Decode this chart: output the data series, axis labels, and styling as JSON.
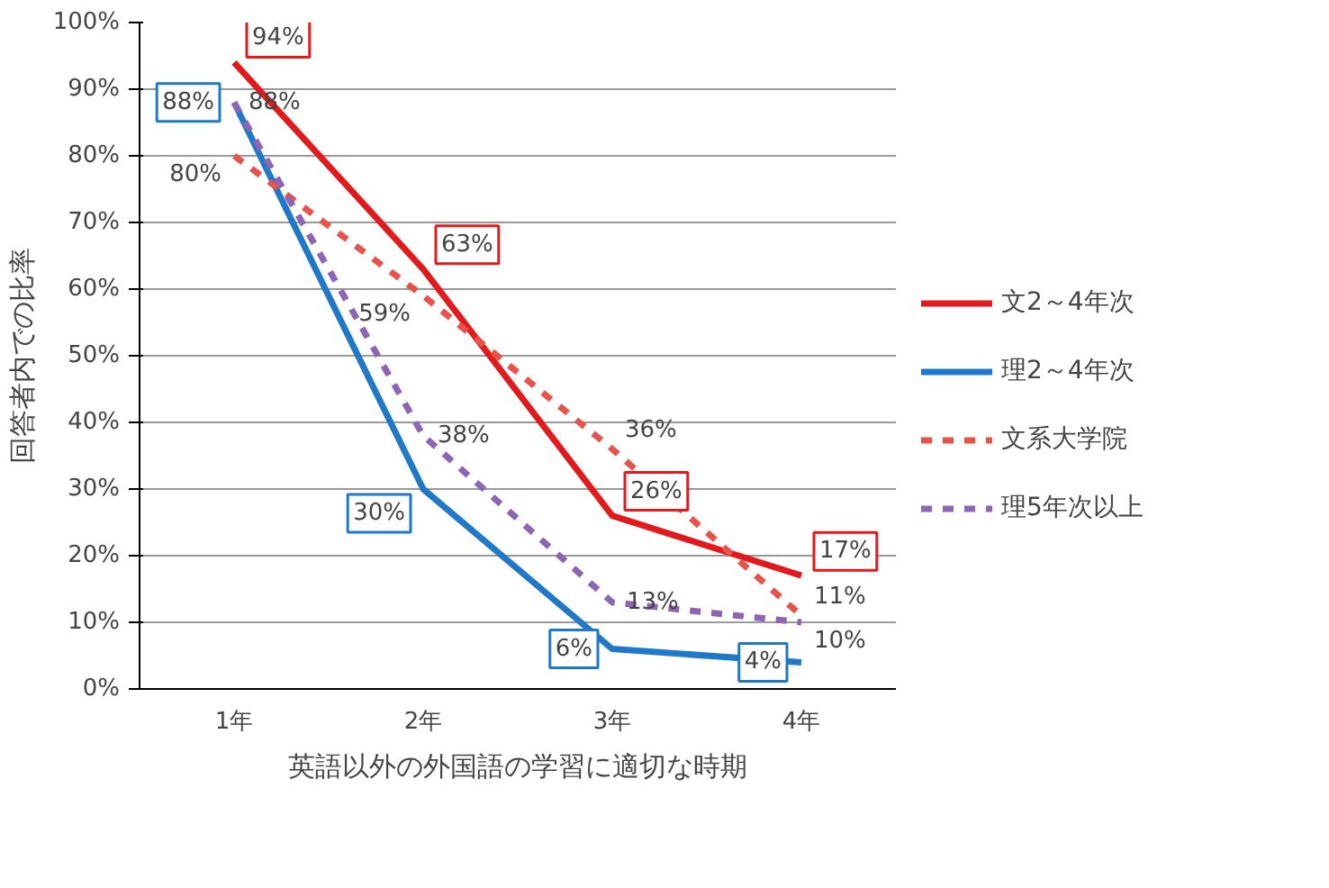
{
  "chart_data": {
    "type": "line",
    "xlabel": "英語以外の外国語の学習に適切な時期",
    "ylabel": "回答者内での比率",
    "categories": [
      "1年",
      "2年",
      "3年",
      "4年"
    ],
    "series": [
      {
        "name": "文2～4年次",
        "color": "#e31a1c",
        "line_style": "solid",
        "values": [
          94,
          63,
          26,
          17
        ],
        "value_labels": [
          "94%",
          "63%",
          "26%",
          "17%"
        ]
      },
      {
        "name": "理2～4年次",
        "color": "#1f78c8",
        "line_style": "solid",
        "values": [
          88,
          30,
          6,
          4
        ],
        "value_labels": [
          "88%",
          "30%",
          "6%",
          "4%"
        ]
      },
      {
        "name": "文系大学院",
        "color": "#e8524a",
        "line_style": "dashed",
        "values": [
          80,
          59,
          36,
          11
        ],
        "value_labels": [
          "80%",
          "59%",
          "36%",
          "11%"
        ]
      },
      {
        "name": "理5年次以上",
        "color": "#8e64b4",
        "line_style": "dashed",
        "values": [
          88,
          38,
          13,
          10
        ],
        "value_labels": [
          "88%",
          "38%",
          "13%",
          "10%"
        ]
      }
    ],
    "ylim": [
      0,
      100
    ],
    "yticks": [
      {
        "value": 0,
        "label": "0%"
      },
      {
        "value": 10,
        "label": "10%"
      },
      {
        "value": 20,
        "label": "20%"
      },
      {
        "value": 30,
        "label": "30%"
      },
      {
        "value": 40,
        "label": "40%"
      },
      {
        "value": 50,
        "label": "50%"
      },
      {
        "value": 60,
        "label": "60%"
      },
      {
        "value": 70,
        "label": "70%"
      },
      {
        "value": 80,
        "label": "80%"
      },
      {
        "value": 90,
        "label": "90%"
      },
      {
        "value": 100,
        "label": "100%"
      }
    ],
    "grid": "y",
    "legend": "right",
    "marker": "none"
  }
}
